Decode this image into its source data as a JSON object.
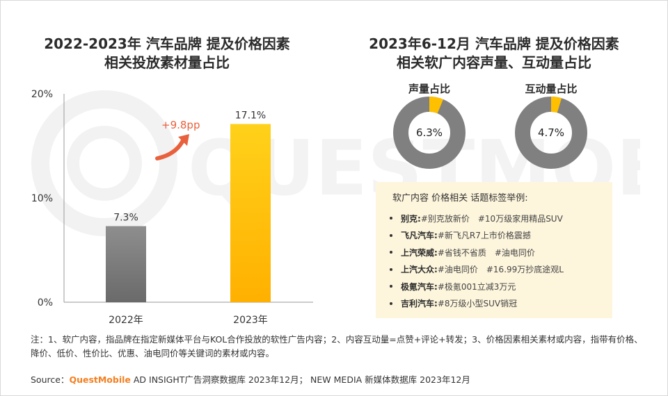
{
  "left_title": [
    "2022-2023年 汽车品牌 提及价格因素",
    "相关投放素材量占比"
  ],
  "right_title": [
    "2023年6-12月 汽车品牌 提及价格因素",
    "相关软广内容声量、互动量占比"
  ],
  "colors": {
    "bar_2022": "#7a7a7a",
    "bar_2023": "#ffc000",
    "arrow": "#e8603c",
    "donut_base": "#808080",
    "donut_highlight": "#ffc000",
    "tag_bg": "#fdf5dc",
    "brand_orange": "#f47f20"
  },
  "chart_data": [
    {
      "type": "bar",
      "categories": [
        "2022年",
        "2023年"
      ],
      "values": [
        7.3,
        17.1
      ],
      "value_labels": [
        "7.3%",
        "17.1%"
      ],
      "y_ticks": [
        "0%",
        "10%",
        "20%"
      ],
      "ylim": [
        0,
        20
      ],
      "annotation": "+9.8pp",
      "grid": false
    },
    {
      "type": "pie",
      "title": "声量占比",
      "value": 6.3,
      "center_label": "6.3%"
    },
    {
      "type": "pie",
      "title": "互动量占比",
      "value": 4.7,
      "center_label": "4.7%"
    }
  ],
  "tag_box": {
    "heading": "软广内容 价格相关 话题标签举例:",
    "items": [
      {
        "brand": "别克:",
        "tags": "#别克放新价　#10万级家用精品SUV"
      },
      {
        "brand": "飞凡汽车:",
        "tags": "#新飞凡R7上市价格震撼"
      },
      {
        "brand": "上汽荣威:",
        "tags": "#省钱不省质　#油电同价"
      },
      {
        "brand": "上汽大众:",
        "tags": "#油电同价　#16.99万抄底途观L"
      },
      {
        "brand": "极氪汽车:",
        "tags": "#极氪001立减3万元"
      },
      {
        "brand": "吉利汽车:",
        "tags": "#8万级小型SUV销冠"
      }
    ]
  },
  "note": "注：1、软广内容，指品牌在指定新媒体平台与KOL合作投放的软性广告内容；2、内容互动量=点赞+评论+转发；3、价格因素相关素材或内容，指带有价格、降价、低价、性价比、优惠、油电同价等关键词的素材或内容。",
  "source": {
    "prefix": "Source：",
    "brand": "QuestMobile",
    "rest": " AD INSIGHT广告洞察数据库 2023年12月；  NEW MEDIA 新媒体数据库 2023年12月"
  },
  "watermark": "QUESTMOBILE"
}
